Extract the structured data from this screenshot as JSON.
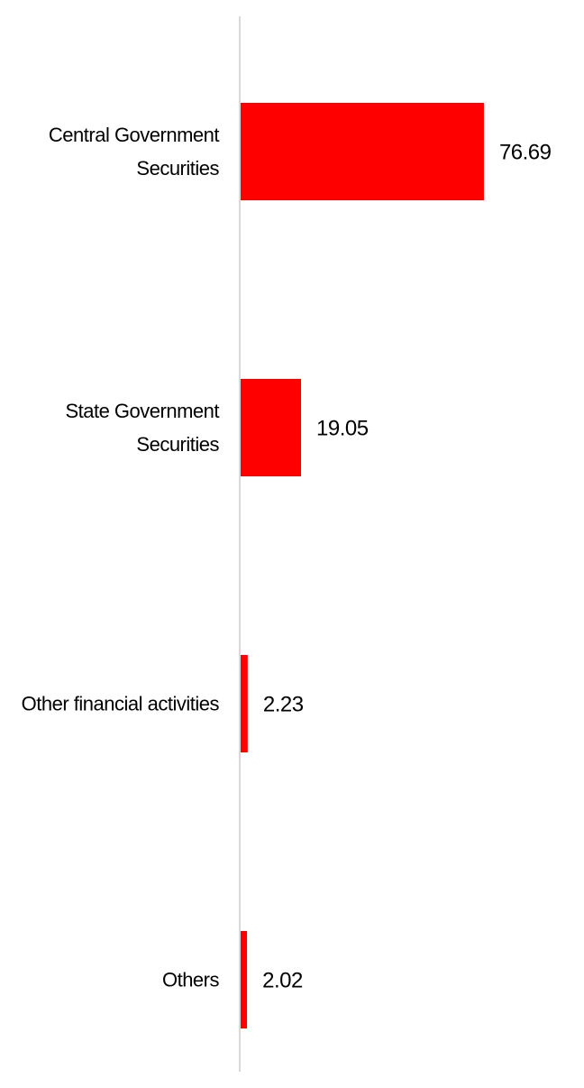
{
  "chart_data": {
    "type": "bar",
    "orientation": "horizontal",
    "categories": [
      "Central Government Securities",
      "State Government Securities",
      "Other financial activities",
      "Others"
    ],
    "values": [
      76.69,
      19.05,
      2.23,
      2.02
    ],
    "color": "#ff0000",
    "xlim": [
      0,
      100
    ],
    "grid": false
  }
}
